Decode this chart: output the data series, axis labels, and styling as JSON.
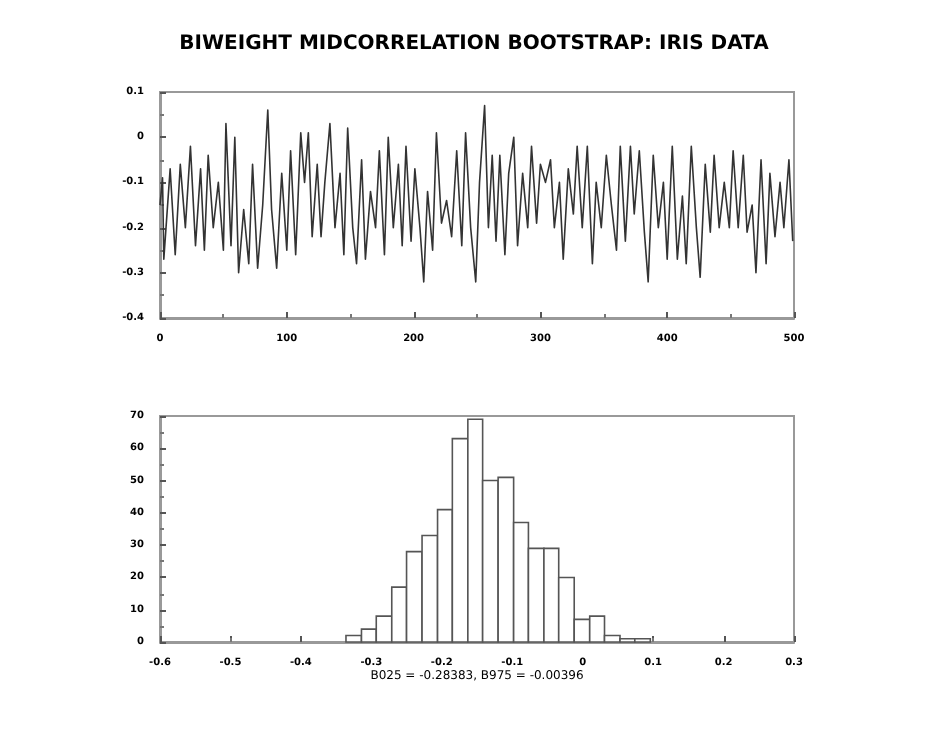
{
  "chart_data": [
    {
      "type": "line",
      "title": "BIWEIGHT MIDCORRELATION BOOTSTRAP: IRIS DATA",
      "series": [
        {
          "color": "#333333",
          "x": [
            0,
            2,
            3,
            8,
            12,
            16,
            20,
            24,
            28,
            32,
            35,
            38,
            42,
            46,
            50,
            52,
            56,
            59,
            62,
            66,
            70,
            73,
            77,
            81,
            85,
            88,
            92,
            96,
            100,
            103,
            107,
            111,
            114,
            117,
            120,
            124,
            127,
            130,
            134,
            138,
            142,
            145,
            148,
            152,
            155,
            159,
            162,
            166,
            170,
            173,
            177,
            180,
            184,
            188,
            191,
            194,
            198,
            201,
            205,
            208,
            211,
            215,
            218,
            222,
            226,
            230,
            234,
            238,
            241,
            245,
            249,
            252,
            256,
            259,
            262,
            265,
            268,
            272,
            275,
            279,
            282,
            286,
            290,
            293,
            297,
            300,
            304,
            308,
            311,
            315,
            318,
            322,
            326,
            329,
            333,
            337,
            341,
            344,
            348,
            352,
            356,
            360,
            363,
            367,
            371,
            374,
            378,
            382,
            385,
            389,
            393,
            397,
            400,
            404,
            408,
            412,
            415,
            419,
            423,
            426,
            430,
            434,
            437,
            441,
            445,
            449,
            452,
            456,
            460,
            463,
            467,
            470,
            474,
            478,
            481,
            485,
            489,
            492,
            496,
            499
          ],
          "values": [
            -0.15,
            -0.09,
            -0.27,
            -0.07,
            -0.26,
            -0.06,
            -0.2,
            -0.02,
            -0.24,
            -0.07,
            -0.25,
            -0.04,
            -0.2,
            -0.1,
            -0.25,
            0.03,
            -0.24,
            0.0,
            -0.3,
            -0.16,
            -0.28,
            -0.06,
            -0.29,
            -0.15,
            0.06,
            -0.16,
            -0.29,
            -0.08,
            -0.25,
            -0.03,
            -0.26,
            0.01,
            -0.1,
            0.01,
            -0.22,
            -0.06,
            -0.22,
            -0.1,
            0.03,
            -0.2,
            -0.08,
            -0.26,
            0.02,
            -0.2,
            -0.28,
            -0.05,
            -0.27,
            -0.12,
            -0.2,
            -0.03,
            -0.26,
            0.0,
            -0.2,
            -0.06,
            -0.24,
            -0.02,
            -0.23,
            -0.07,
            -0.2,
            -0.32,
            -0.12,
            -0.25,
            0.01,
            -0.19,
            -0.14,
            -0.22,
            -0.03,
            -0.24,
            0.01,
            -0.2,
            -0.32,
            -0.1,
            0.07,
            -0.2,
            -0.04,
            -0.23,
            -0.04,
            -0.26,
            -0.08,
            0.0,
            -0.24,
            -0.08,
            -0.2,
            -0.02,
            -0.19,
            -0.06,
            -0.1,
            -0.05,
            -0.2,
            -0.1,
            -0.27,
            -0.07,
            -0.17,
            -0.02,
            -0.2,
            -0.02,
            -0.28,
            -0.1,
            -0.2,
            -0.04,
            -0.15,
            -0.25,
            -0.02,
            -0.23,
            -0.02,
            -0.17,
            -0.03,
            -0.21,
            -0.32,
            -0.04,
            -0.2,
            -0.1,
            -0.27,
            -0.02,
            -0.27,
            -0.13,
            -0.28,
            -0.02,
            -0.2,
            -0.31,
            -0.06,
            -0.21,
            -0.04,
            -0.2,
            -0.1,
            -0.2,
            -0.03,
            -0.2,
            -0.04,
            -0.21,
            -0.15,
            -0.3,
            -0.05,
            -0.28,
            -0.08,
            -0.22,
            -0.1,
            -0.2,
            -0.05,
            -0.23
          ]
        }
      ],
      "xlim": [
        0,
        500
      ],
      "xticks": [
        0,
        100,
        200,
        300,
        400,
        500
      ],
      "ylim": [
        -0.4,
        0.1
      ],
      "yticks": [
        -0.4,
        -0.3,
        -0.2,
        -0.1,
        0,
        0.1
      ],
      "grid": false,
      "marker": "none",
      "line_style": "solid"
    },
    {
      "type": "histogram",
      "xlabel": "B025 = -0.28383, B975 = -0.00396",
      "color": "#ffffff",
      "bins": [
        -0.336,
        -0.314,
        -0.293,
        -0.271,
        -0.25,
        -0.228,
        -0.206,
        -0.185,
        -0.163,
        -0.142,
        -0.12,
        -0.098,
        -0.077,
        -0.055,
        -0.034,
        -0.012,
        0.01,
        0.031,
        0.053,
        0.074,
        0.096
      ],
      "values": [
        2,
        4,
        8,
        17,
        28,
        33,
        41,
        63,
        69,
        50,
        51,
        37,
        29,
        29,
        20,
        7,
        8,
        2,
        1,
        1
      ],
      "xlim": [
        -0.6,
        0.3
      ],
      "xticks": [
        -0.6,
        -0.5,
        -0.4,
        -0.3,
        -0.2,
        -0.1,
        0,
        0.1,
        0.2,
        0.3
      ],
      "ylim": [
        0,
        70
      ],
      "yticks": [
        0,
        10,
        20,
        30,
        40,
        50,
        60,
        70
      ],
      "grid": false
    }
  ]
}
